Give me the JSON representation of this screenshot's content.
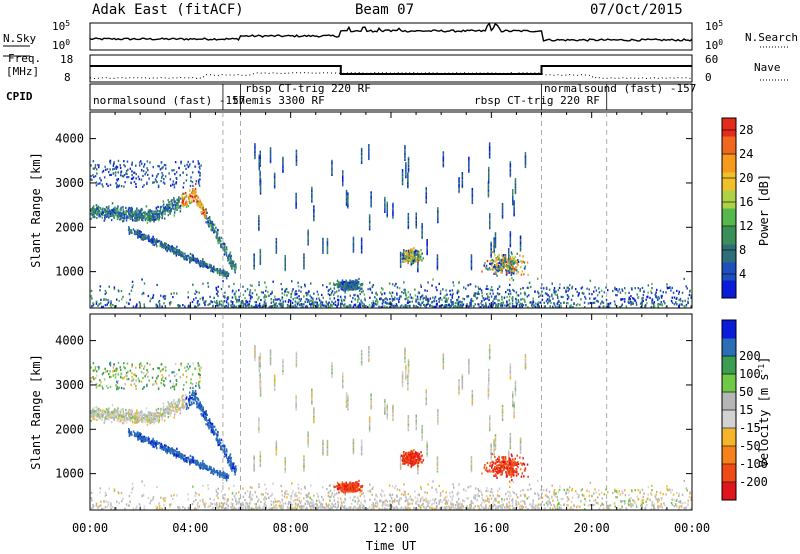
{
  "header": {
    "site": "Adak East (fitACF)",
    "beam": "Beam 07",
    "date": "07/Oct/2015"
  },
  "panel_labels": {
    "nsky": "N.Sky",
    "nsearch": "N.Search",
    "freq_line1": "Freq.",
    "freq_line2": "[MHz]",
    "nave": "Nave",
    "cpid": "CPID",
    "nsky_ticks": [
      "10^5",
      "10^0"
    ],
    "nsearch_ticks": [
      "10^5",
      "10^0"
    ],
    "freq_ticks": [
      "18",
      "8"
    ],
    "nave_ticks": [
      "60",
      "0"
    ]
  },
  "cpid_labels": [
    "normalsound (fast) -157",
    "themis 3300 RF",
    "rbsp CT-trig 220 RF",
    "rbsp CT-trig 220 RF",
    "normalsound (fast) -157"
  ],
  "colors": {
    "power": [
      "#0a1bd9",
      "#1d4fbf",
      "#2e6e7a",
      "#3a8f59",
      "#55b84a",
      "#aed246",
      "#f0c02a",
      "#f59a1c",
      "#f0671e",
      "#e32a1b"
    ],
    "velocity": [
      "#e0141b",
      "#f04a16",
      "#f5801c",
      "#f5b52a",
      "#d2d2d2",
      "#b6b6b6",
      "#6fc846",
      "#3a9d4f",
      "#2a6eb8",
      "#0a1bd9"
    ]
  },
  "chart_data": [
    {
      "type": "heatmap",
      "name": "power",
      "xlabel": "",
      "ylabel": "Slant Range [km]",
      "x_range_hours": [
        0,
        24
      ],
      "ylim": [
        180,
        4600
      ],
      "x_tick_labels": [
        "00:00",
        "04:00",
        "08:00",
        "12:00",
        "16:00",
        "20:00",
        "00:00"
      ],
      "y_ticks": [
        1000,
        2000,
        3000,
        4000
      ],
      "colorbar_label": "Power [dB]",
      "colorbar_ticks": [
        "4",
        "8",
        "12",
        "16",
        "20",
        "24",
        "28"
      ],
      "colorbar_range": [
        0,
        30
      ]
    },
    {
      "type": "heatmap",
      "name": "velocity",
      "xlabel": "Time UT",
      "ylabel": "Slant Range [km]",
      "x_range_hours": [
        0,
        24
      ],
      "ylim": [
        180,
        4600
      ],
      "x_tick_labels": [
        "00:00",
        "04:00",
        "08:00",
        "12:00",
        "16:00",
        "20:00",
        "00:00"
      ],
      "y_ticks": [
        1000,
        2000,
        3000,
        4000
      ],
      "colorbar_label": "Velocity [m s^-1]",
      "colorbar_ticks": [
        "-200",
        "-100",
        "-50",
        "-15",
        "15",
        "50",
        "100",
        "200"
      ]
    }
  ],
  "dashed_times_hours": [
    5.3,
    6.0,
    18.0,
    20.6
  ]
}
